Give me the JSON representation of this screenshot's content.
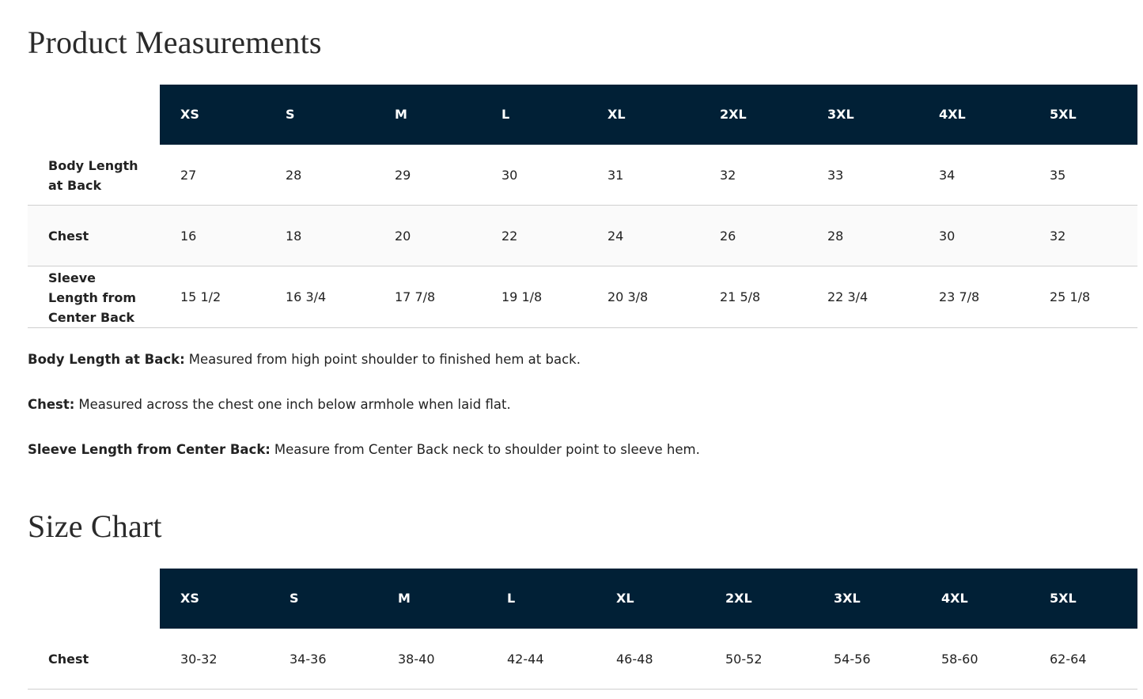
{
  "sections": [
    {
      "title": "Product Measurements",
      "columns": [
        "XS",
        "S",
        "M",
        "L",
        "XL",
        "2XL",
        "3XL",
        "4XL",
        "5XL"
      ],
      "rows": [
        {
          "label": "Body Length at Back",
          "values": [
            27,
            28,
            29,
            30,
            31,
            32,
            33,
            34,
            35
          ]
        },
        {
          "label": "Chest",
          "values": [
            16,
            18,
            20,
            22,
            24,
            26,
            28,
            30,
            32
          ]
        },
        {
          "label": "Sleeve Length from Center Back",
          "values": [
            "15 1/2",
            "16 3/4",
            "17 7/8",
            "19 1/8",
            "20 3/8",
            "21 5/8",
            "22 3/4",
            "23 7/8",
            "25 1/8"
          ]
        }
      ],
      "notes": [
        {
          "term": "Body Length at Back:",
          "text": "Measured from high point shoulder to finished hem at back."
        },
        {
          "term": "Chest:",
          "text": "Measured across the chest one inch below armhole when laid flat."
        },
        {
          "term": "Sleeve Length from Center Back:",
          "text": "Measure from Center Back neck to shoulder point to sleeve hem."
        }
      ]
    },
    {
      "title": "Size Chart",
      "columns": [
        "XS",
        "S",
        "M",
        "L",
        "XL",
        "2XL",
        "3XL",
        "4XL",
        "5XL"
      ],
      "rows": [
        {
          "label": "Chest",
          "values": [
            "30-32",
            "34-36",
            "38-40",
            "42-44",
            "46-48",
            "50-52",
            "54-56",
            "58-60",
            "62-64"
          ]
        }
      ],
      "notes": []
    }
  ]
}
